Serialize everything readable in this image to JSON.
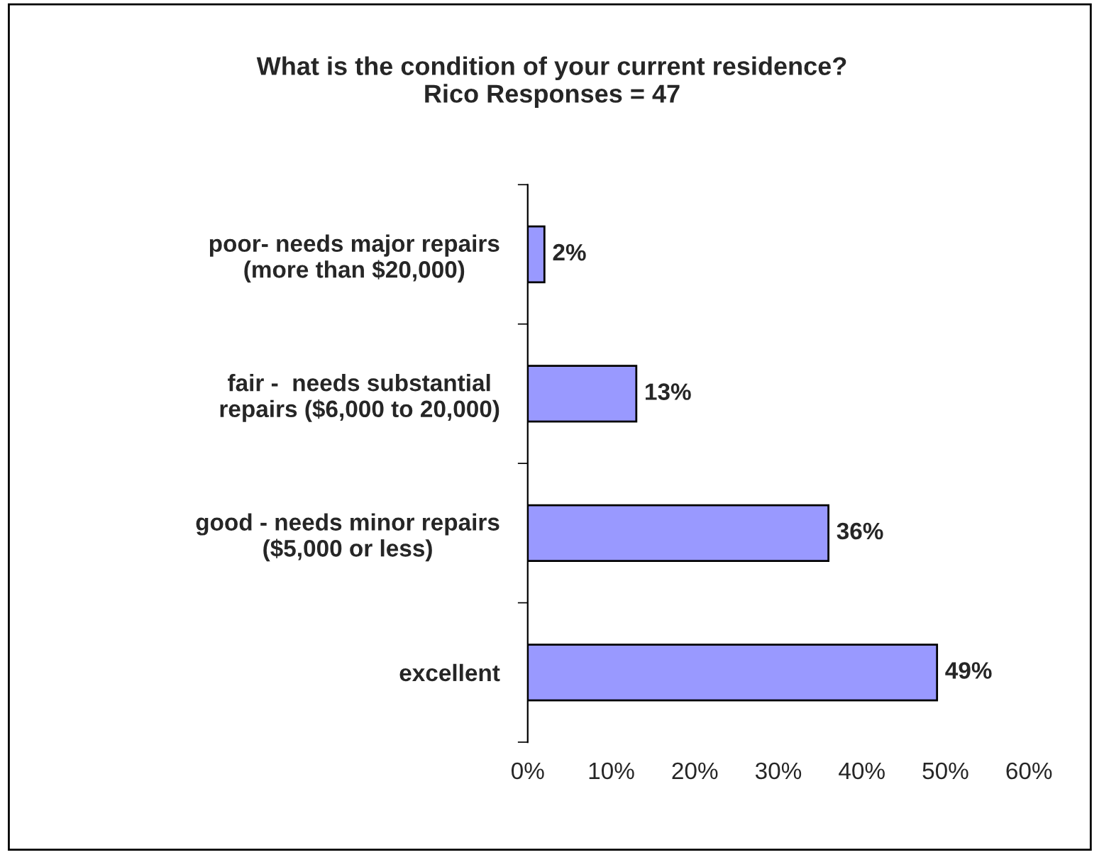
{
  "chart_data": {
    "type": "bar",
    "orientation": "horizontal",
    "title": "What is the condition of your current residence?\nRico Responses = 47",
    "categories": [
      "poor- needs major repairs\n(more than $20,000)",
      "fair -  needs substantial\nrepairs ($6,000 to 20,000)",
      "good - needs minor repairs\n($5,000 or less)",
      "excellent"
    ],
    "values": [
      2,
      13,
      36,
      49
    ],
    "value_labels": [
      "2%",
      "13%",
      "36%",
      "49%"
    ],
    "color": "#9999ff",
    "xlim": [
      0,
      60
    ],
    "xticks": [
      {
        "value": 0,
        "label": "0%"
      },
      {
        "value": 10,
        "label": "10%"
      },
      {
        "value": 20,
        "label": "20%"
      },
      {
        "value": 30,
        "label": "30%"
      },
      {
        "value": 40,
        "label": "40%"
      },
      {
        "value": 50,
        "label": "50%"
      },
      {
        "value": 60,
        "label": "60%"
      }
    ],
    "grid": false
  }
}
